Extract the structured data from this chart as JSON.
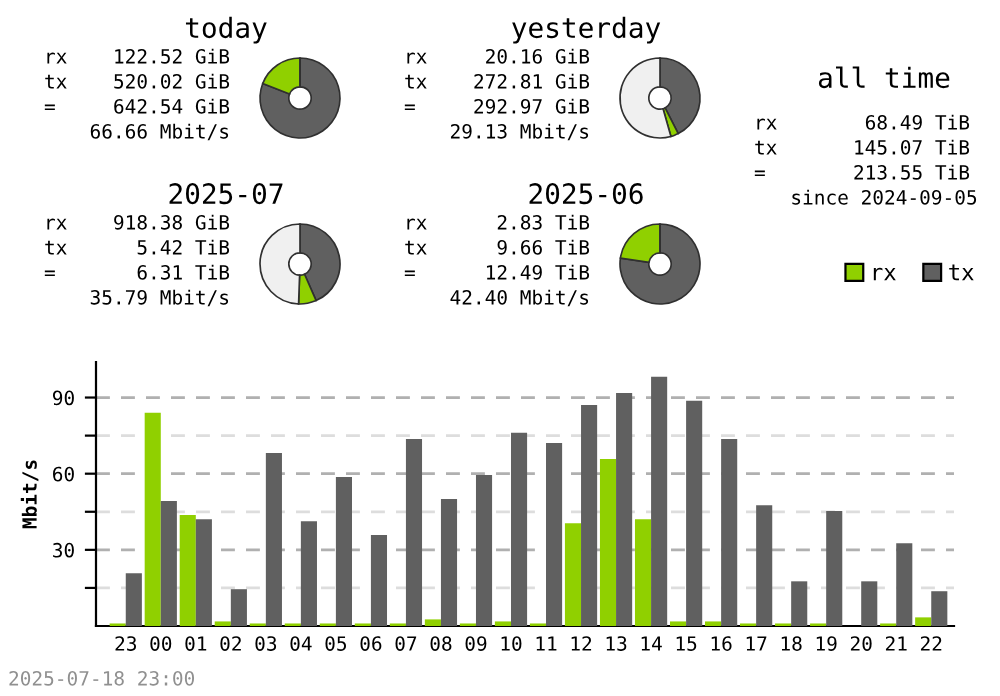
{
  "chart_data": [
    {
      "type": "donut",
      "title": "today",
      "categories": [
        null,
        null,
        null
      ],
      "values": [
        80.93,
        19.07,
        0
      ],
      "colors": [
        "#606060",
        "#90d000",
        "#f0f0f0"
      ],
      "annotations": [
        "rx 122.52 GiB",
        "tx 520.02 GiB",
        "= 642.54 GiB",
        "66.66 Mbit/s"
      ]
    },
    {
      "type": "donut",
      "title": "yesterday",
      "categories": [
        null,
        null,
        null
      ],
      "values": [
        42.46,
        3.14,
        54.4
      ],
      "colors": [
        "#606060",
        "#90d000",
        "#f0f0f0"
      ],
      "annotations": [
        "rx 20.16 GiB",
        "tx 272.81 GiB",
        "= 292.97 GiB",
        "29.13 Mbit/s"
      ]
    },
    {
      "type": "donut",
      "title": "2025-07",
      "categories": [
        null,
        null,
        null
      ],
      "values": [
        43.39,
        7.18,
        49.43
      ],
      "colors": [
        "#606060",
        "#90d000",
        "#f0f0f0"
      ],
      "annotations": [
        "rx 918.38 GiB",
        "tx 5.42 TiB",
        "= 6.31 TiB",
        "35.79 Mbit/s"
      ]
    },
    {
      "type": "donut",
      "title": "2025-06",
      "categories": [
        null,
        null,
        null
      ],
      "values": [
        77.34,
        22.66,
        0
      ],
      "colors": [
        "#606060",
        "#90d000",
        "#f0f0f0"
      ],
      "annotations": [
        "rx 2.83 TiB",
        "tx 9.66 TiB",
        "= 12.49 TiB",
        "42.40 Mbit/s"
      ]
    },
    {
      "type": "other",
      "title": "all time",
      "annotations": [
        "rx 68.49 TiB",
        "tx 145.07 TiB",
        "= 213.55 TiB",
        "since 2024-09-05"
      ]
    },
    {
      "type": "bar",
      "ylabel": "Mbit/s",
      "legend": "top right",
      "grid": "y",
      "categories": [
        "23",
        "00",
        "01",
        "02",
        "03",
        "04",
        "05",
        "06",
        "07",
        "08",
        "09",
        "10",
        "11",
        "12",
        "13",
        "14",
        "15",
        "16",
        "17",
        "18",
        "19",
        "20",
        "21",
        "22"
      ],
      "series": [
        {
          "name": "rx",
          "color": "#90d000",
          "values": [
            1,
            84,
            43.7,
            1.8,
            1,
            1,
            1,
            1,
            1,
            2.6,
            1,
            1.8,
            1,
            40.5,
            65.8,
            42.1,
            1.8,
            1.8,
            1,
            1,
            1,
            0,
            1,
            3.4
          ]
        },
        {
          "name": "tx",
          "color": "#606060",
          "values": [
            20.8,
            49.2,
            42.1,
            14.5,
            68.2,
            41.3,
            58.7,
            35.8,
            73.7,
            50,
            59.5,
            76.1,
            72.1,
            87.1,
            91.8,
            98.2,
            88.7,
            73.7,
            47.6,
            17.6,
            45.3,
            17.6,
            32.6,
            13.7
          ]
        }
      ],
      "ylim": [
        0,
        104
      ],
      "yticks": [
        {
          "value": 15,
          "label": null
        },
        30,
        {
          "value": 45,
          "label": null
        },
        60,
        {
          "value": 75,
          "label": null
        },
        90
      ],
      "annotations": [
        "2025-07-18 23:00"
      ]
    }
  ]
}
